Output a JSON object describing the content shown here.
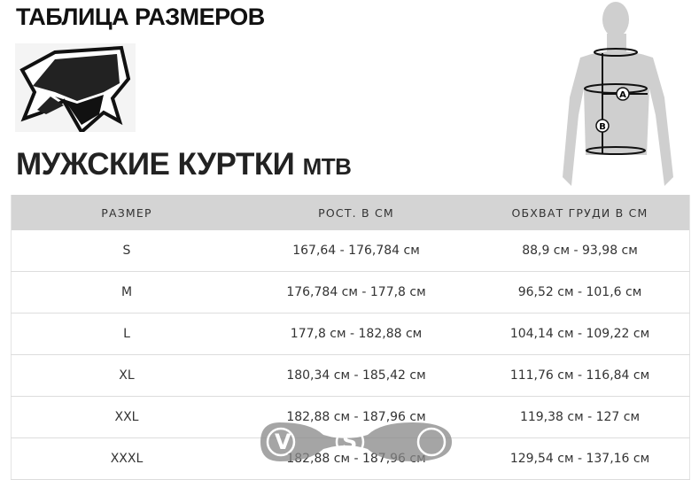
{
  "title": "ТАБЛИЦА РАЗМЕРОВ",
  "subtitle": {
    "main": "МУЖСКИЕ КУРТКИ",
    "suffix": "MTB"
  },
  "logo": "fox-head-logo",
  "figure": {
    "labels": [
      "A",
      "B"
    ]
  },
  "table": {
    "headers": [
      "РАЗМЕР",
      "РОСТ. В СМ",
      "ОБХВАТ ГРУДИ В СМ"
    ],
    "rows": [
      [
        "S",
        "167,64 - 176,784 см",
        "88,9 см - 93,98 см"
      ],
      [
        "M",
        "176,784 см - 177,8 см",
        "96,52 см - 101,6 см"
      ],
      [
        "L",
        "177,8 см - 182,88 см",
        "104,14 см - 109,22 см"
      ],
      [
        "XL",
        "180,34 см - 185,42 см",
        "111,76 см - 116,84 см"
      ],
      [
        "XXL",
        "182,88 см - 187,96 см",
        "119,38 см - 127 см"
      ],
      [
        "XXXL",
        "182,88 см - 187,96 см",
        "129,54 см - 137,16 см"
      ]
    ]
  },
  "watermark": {
    "text": "VeloStudio"
  }
}
